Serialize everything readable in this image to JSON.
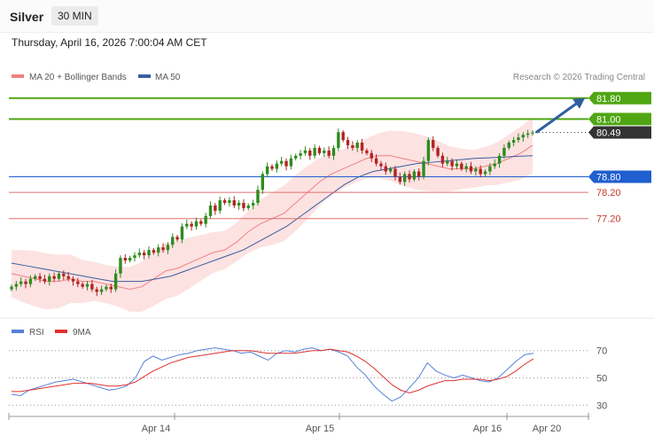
{
  "header": {
    "instrument": "Silver",
    "interval": "30 MIN",
    "datetime": "Thursday, April 16, 2026 7:00:04 AM CET"
  },
  "legend": {
    "bollinger": "MA 20 + Bollinger Bands",
    "ma50": "MA 50",
    "rsi": "RSI",
    "rsi_ma": "9MA"
  },
  "copyright": "Research © 2026 Trading Central",
  "colors": {
    "up_candle": "#2e8b1e",
    "down_candle": "#b22222",
    "ma20": "#f08080",
    "ma50": "#3b5e9e",
    "band_fill": "#fde2e2",
    "resistance": "#4fa612",
    "support_key": "#1f5fcf",
    "support": "#e07070",
    "current": "#333333",
    "arrow": "#2f5f9f",
    "rsi": "#5580d8",
    "rsi_ma": "#e03030"
  },
  "chart_data": [
    {
      "type": "candlestick",
      "title": "Silver",
      "x_labels": [
        "Apr 14",
        "Apr 15",
        "Apr 16",
        "Apr 20"
      ],
      "ylim": [
        73.3,
        82.3
      ],
      "y_label": "",
      "levels": [
        {
          "value": 81.8,
          "label": "81.80",
          "kind": "resistance"
        },
        {
          "value": 81.0,
          "label": "81.00",
          "kind": "resistance"
        },
        {
          "value": 80.49,
          "label": "80.49",
          "kind": "current"
        },
        {
          "value": 78.8,
          "label": "78.80",
          "kind": "support_key"
        },
        {
          "value": 78.2,
          "label": "78.20",
          "kind": "support"
        },
        {
          "value": 77.2,
          "label": "77.20",
          "kind": "support"
        }
      ],
      "arrow": {
        "from_close": 80.49,
        "to": 81.8
      },
      "close": [
        74.6,
        74.7,
        74.8,
        74.7,
        74.9,
        75.0,
        74.9,
        74.8,
        75.0,
        74.9,
        75.1,
        75.0,
        74.9,
        74.8,
        74.7,
        74.6,
        74.7,
        74.5,
        74.4,
        74.5,
        74.6,
        74.5,
        75.1,
        75.7,
        75.6,
        75.7,
        75.8,
        75.9,
        75.8,
        76.0,
        75.9,
        76.1,
        76.0,
        76.2,
        76.5,
        76.4,
        76.9,
        77.0,
        76.9,
        77.1,
        77.0,
        77.3,
        77.7,
        77.5,
        77.9,
        77.8,
        77.9,
        77.7,
        77.8,
        77.6,
        77.7,
        77.8,
        78.3,
        78.9,
        79.2,
        79.1,
        79.3,
        79.4,
        79.2,
        79.5,
        79.6,
        79.7,
        79.8,
        79.6,
        79.9,
        79.7,
        79.8,
        79.6,
        79.9,
        80.5,
        80.2,
        80.0,
        79.9,
        80.1,
        79.8,
        79.7,
        79.5,
        79.3,
        79.2,
        79.0,
        79.1,
        78.8,
        78.6,
        78.9,
        78.7,
        79.0,
        78.8,
        79.4,
        80.2,
        79.9,
        79.6,
        79.3,
        79.4,
        79.2,
        79.3,
        79.1,
        79.2,
        79.0,
        79.1,
        78.9,
        79.0,
        79.2,
        79.3,
        79.6,
        79.9,
        80.1,
        80.2,
        80.3,
        80.4,
        80.45,
        80.49
      ],
      "ma20": [
        75.1,
        75.0,
        74.9,
        74.8,
        74.8,
        74.9,
        74.8,
        74.8,
        74.7,
        74.6,
        74.5,
        74.6,
        74.9,
        75.2,
        75.3,
        75.5,
        75.7,
        75.9,
        76.0,
        76.3,
        76.7,
        77.0,
        77.2,
        77.4,
        77.8,
        78.2,
        78.6,
        78.9,
        79.1,
        79.3,
        79.5,
        79.6,
        79.6,
        79.5,
        79.4,
        79.3,
        79.2,
        79.1,
        79.1,
        79.1,
        79.2,
        79.3,
        79.5,
        79.7,
        80.0
      ],
      "ma50": [
        75.5,
        75.4,
        75.3,
        75.2,
        75.1,
        75.0,
        74.9,
        74.8,
        74.8,
        74.8,
        74.9,
        75.0,
        75.2,
        75.4,
        75.6,
        75.8,
        76.0,
        76.3,
        76.6,
        76.9,
        77.3,
        77.7,
        78.1,
        78.5,
        78.8,
        79.0,
        79.1,
        79.2,
        79.3,
        79.35,
        79.4,
        79.45,
        79.5,
        79.52,
        79.55,
        79.58,
        79.6
      ]
    },
    {
      "type": "line",
      "title": "RSI",
      "ylim": [
        25,
        75
      ],
      "y_ticks": [
        70,
        50,
        30
      ],
      "series": [
        {
          "name": "RSI",
          "values": [
            38,
            37,
            41,
            43,
            45,
            47,
            48,
            49,
            47,
            45,
            43,
            41,
            42,
            44,
            50,
            62,
            66,
            63,
            65,
            67,
            68,
            70,
            71,
            72,
            71,
            70,
            68,
            69,
            66,
            63,
            68,
            70,
            69,
            71,
            72,
            70,
            71,
            69,
            66,
            58,
            52,
            44,
            38,
            33,
            36,
            43,
            50,
            61,
            55,
            52,
            50,
            52,
            50,
            48,
            47,
            50,
            56,
            62,
            67,
            68
          ]
        },
        {
          "name": "9MA",
          "values": [
            40,
            40,
            41,
            42,
            43,
            44,
            45,
            46,
            46,
            46,
            45,
            44,
            44,
            45,
            47,
            51,
            55,
            58,
            61,
            63,
            65,
            66,
            67,
            68,
            69,
            70,
            70,
            70,
            69,
            68,
            68,
            68,
            68,
            69,
            70,
            70,
            71,
            70,
            69,
            66,
            62,
            57,
            51,
            45,
            41,
            39,
            41,
            44,
            46,
            48,
            48,
            49,
            49,
            49,
            48,
            49,
            51,
            55,
            60,
            64
          ]
        }
      ]
    }
  ]
}
